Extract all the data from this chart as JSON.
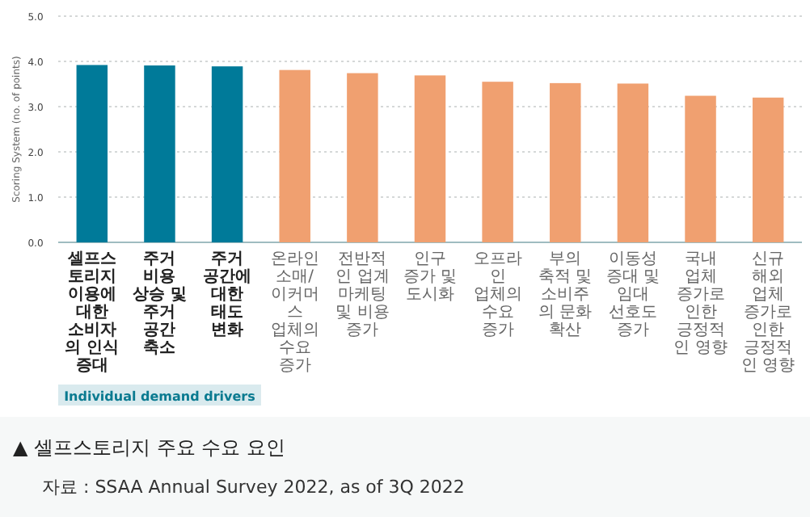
{
  "chart_data": {
    "type": "bar",
    "categories": [
      "셀프스토리지 이용에 대한 소비자의 인식 증대",
      "주거 비용 상승 및 주거 공간 축소",
      "주거 공간에 대한 태도 변화",
      "온라인 소매/ 이커머스 업체의 수요 증가",
      "전반적인 업계 마케팅 및 비용 증가",
      "인구 증가 및 도시화",
      "오프라인 업체의 수요 증가",
      "부의 축적 및 소비주의 문화 확산",
      "이동성 증대 및 임대 선호도 증가",
      "국내 업체 증가로 인한 긍정적인 영향",
      "신규 해외 업체 증가로 인한 긍정적인 영향"
    ],
    "values": [
      3.92,
      3.91,
      3.89,
      3.81,
      3.74,
      3.69,
      3.55,
      3.52,
      3.51,
      3.24,
      3.2
    ],
    "colors": [
      "#007a99",
      "#007a99",
      "#007a99",
      "#f0a070",
      "#f0a070",
      "#f0a070",
      "#f0a070",
      "#f0a070",
      "#f0a070",
      "#f0a070",
      "#f0a070"
    ],
    "ylabel": "Scoring System (no. of points)",
    "ylim": [
      0,
      5
    ],
    "yticks": [
      {
        "value": 0,
        "label": "0.0"
      },
      {
        "value": 1,
        "label": "1.0"
      },
      {
        "value": 2,
        "label": "2.0"
      },
      {
        "value": 3,
        "label": "3.0"
      },
      {
        "value": 4,
        "label": "4.0"
      },
      {
        "value": 5,
        "label": "5.0"
      }
    ],
    "grid": "y",
    "annotations": [
      "Individual demand drivers",
      "▲ 셀프스토리지 주요 수요 요인",
      "자료 : SSAA Annual Survey 2022, as of 3Q 2022"
    ]
  }
}
